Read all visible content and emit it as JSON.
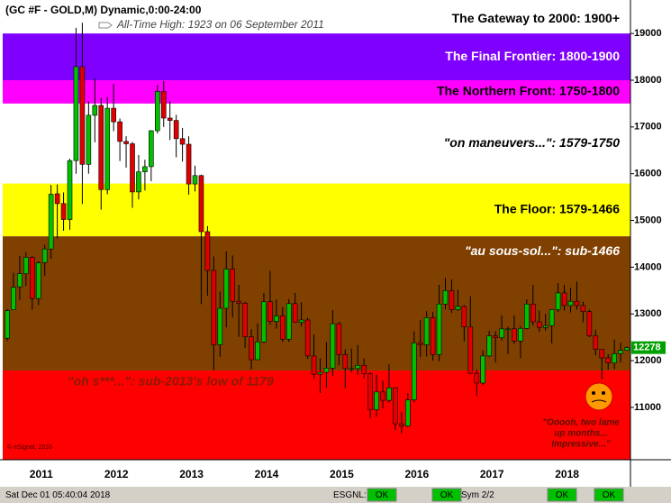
{
  "chart_data": {
    "type": "candlestick",
    "title": "(GC #F - GOLD,M) Dynamic,0:00-24:00",
    "annotations": {
      "all_time_high": "All-Time High:  1923 on 06 September 2011",
      "copyright": "© eSignal, 2016",
      "caption": [
        "\"Ooooh, two lame",
        "up months...",
        "Impressive...\""
      ]
    },
    "bands": [
      {
        "label": "The Gateway to 2000:  1900+",
        "low": 19000,
        "color": "#ffffff",
        "text_color": "#000000"
      },
      {
        "label": "The Final Frontier:  1800-1900",
        "low": 18000,
        "color": "#8000ff",
        "text_color": "#ffffff"
      },
      {
        "label": "The Northern Front:  1750-1800",
        "low": 17500,
        "color": "#ff00ff",
        "text_color": "#000000"
      },
      {
        "label": "\"on maneuvers...\":  1579-1750",
        "low": 15790,
        "color": "#ffffff",
        "text_color": "#000000"
      },
      {
        "label": "The Floor:  1579-1466",
        "low": 14660,
        "color": "#ffff00",
        "text_color": "#000000"
      },
      {
        "label": "\"au sous-sol...\":  sub-1466",
        "low": 11790,
        "color": "#804000",
        "text_color": "#ffffff"
      },
      {
        "label": "\"oh s***...\":  sub-2013's low of 1179",
        "color": "#ff0000",
        "text_color": "#8b1a00"
      }
    ],
    "categories": [
      null,
      null,
      null,
      null,
      "2011",
      null,
      null,
      null,
      null,
      null,
      null,
      null,
      null,
      null,
      null,
      null,
      "2012",
      null,
      null,
      null,
      null,
      null,
      null,
      null,
      null,
      null,
      null,
      null,
      "2013",
      null,
      null,
      null,
      null,
      null,
      null,
      null,
      null,
      null,
      null,
      null,
      "2014",
      null,
      null,
      null,
      null,
      null,
      null,
      null,
      null,
      null,
      null,
      null,
      "2015",
      null,
      null,
      null,
      null,
      null,
      null,
      null,
      null,
      null,
      null,
      null,
      "2016",
      null,
      null,
      null,
      null,
      null,
      null,
      null,
      null,
      null,
      null,
      null,
      "2017",
      null,
      null,
      null,
      null,
      null,
      null,
      null,
      null,
      null,
      null,
      null,
      "2018",
      null,
      null,
      null,
      null,
      null,
      null,
      null,
      null,
      null,
      null,
      null
    ],
    "open": [
      12480,
      13090,
      13580,
      13860,
      14210,
      13330,
      14100,
      14390,
      15570,
      15360,
      15020,
      16280,
      18290,
      16200,
      17250,
      17460,
      15660,
      17400,
      17110,
      16690,
      16640,
      15610,
      16040,
      16150,
      16920,
      17760,
      17190,
      17140,
      16750,
      16630,
      15780,
      15960,
      14760,
      13930,
      12340,
      13120,
      13960,
      13270,
      13230,
      12510,
      12020,
      12400,
      13260,
      12840,
      12960,
      12460,
      13220,
      12820,
      12870,
      12100,
      11710,
      11750,
      11840,
      12790,
      12130,
      11830,
      11830,
      11900,
      11720,
      10950,
      11330,
      11150,
      11420,
      10650,
      10600,
      11160,
      12380,
      12340,
      12920,
      12130,
      13210,
      13500,
      13090,
      13160,
      12720,
      11730,
      11520,
      12100,
      12530,
      12490,
      12680,
      12680,
      12420,
      12690,
      13210,
      12830,
      12710,
      12750,
      13090,
      13450,
      13180,
      13270,
      13180,
      13050,
      12530,
      12240,
      12060,
      11950,
      12150,
      12220
    ],
    "high": [
      13100,
      13880,
      14240,
      14320,
      14240,
      14130,
      14480,
      15760,
      15770,
      15600,
      16320,
      19120,
      19230,
      17550,
      18040,
      17620,
      17640,
      17920,
      17180,
      16800,
      16680,
      16400,
      16300,
      16930,
      17900,
      17980,
      17550,
      17260,
      16980,
      16800,
      16170,
      15980,
      14880,
      14230,
      13480,
      14340,
      14250,
      13620,
      13260,
      12670,
      12800,
      13450,
      13920,
      13310,
      13150,
      13320,
      13450,
      13250,
      12920,
      12560,
      12050,
      12400,
      13080,
      12830,
      12240,
      12260,
      12330,
      12050,
      11750,
      11700,
      11570,
      11920,
      11430,
      10900,
      11300,
      12630,
      12870,
      13060,
      13040,
      13620,
      13770,
      13740,
      13520,
      13190,
      13380,
      11810,
      12220,
      12640,
      12630,
      12970,
      12730,
      12970,
      12740,
      13310,
      13620,
      13070,
      13000,
      13100,
      13660,
      13620,
      13560,
      13690,
      13260,
      13090,
      12660,
      12240,
      12140,
      12450,
      12390,
      12300
    ],
    "low": [
      12420,
      13100,
      13300,
      13600,
      13090,
      13190,
      13810,
      14180,
      14620,
      14780,
      14800,
      16000,
      15350,
      16000,
      16670,
      15230,
      15560,
      16910,
      16270,
      16130,
      15270,
      15450,
      15640,
      15840,
      16860,
      17000,
      16720,
      16350,
      16260,
      15550,
      15620,
      13210,
      13390,
      11790,
      12080,
      12710,
      12920,
      12510,
      12270,
      11810,
      12020,
      12380,
      12770,
      12680,
      12400,
      12400,
      12820,
      12730,
      12040,
      11610,
      11310,
      11420,
      11670,
      11900,
      11420,
      11750,
      11700,
      11620,
      10770,
      10800,
      10980,
      11100,
      10520,
      10450,
      10580,
      11110,
      12080,
      12090,
      12000,
      11990,
      13100,
      13020,
      13060,
      12410,
      11710,
      11240,
      11470,
      12080,
      11960,
      12430,
      12140,
      12360,
      12050,
      12670,
      12750,
      12620,
      12640,
      12370,
      13040,
      13070,
      13030,
      13090,
      12820,
      12500,
      12110,
      11600,
      11800,
      11820,
      11960,
      12210
    ],
    "close": [
      13070,
      13570,
      13860,
      14210,
      13330,
      14090,
      14390,
      15560,
      15360,
      15020,
      16280,
      18290,
      16200,
      17250,
      17460,
      15660,
      17400,
      17110,
      16690,
      16640,
      15610,
      16040,
      16150,
      16920,
      17760,
      17190,
      17140,
      16750,
      16630,
      15780,
      15960,
      14760,
      13930,
      12340,
      13120,
      13960,
      13270,
      13230,
      12510,
      12020,
      12400,
      13260,
      12840,
      12960,
      12460,
      13220,
      12820,
      12870,
      12100,
      11710,
      11750,
      11840,
      12790,
      12130,
      11830,
      11830,
      11900,
      11720,
      10950,
      11330,
      11150,
      11420,
      10650,
      10600,
      11160,
      12380,
      12340,
      12920,
      12130,
      13210,
      13500,
      13090,
      13160,
      12720,
      11730,
      11520,
      12100,
      12530,
      12490,
      12680,
      12680,
      12420,
      12690,
      13210,
      12830,
      12710,
      12750,
      13090,
      13450,
      13180,
      13270,
      13180,
      13050,
      12530,
      12240,
      12060,
      11950,
      12150,
      12220,
      12278
    ],
    "up_color": "#00c000",
    "down_color": "#e00000",
    "ylim": [
      9880,
      19620
    ],
    "yticks": [
      11000,
      12000,
      13000,
      14000,
      15000,
      16000,
      17000,
      18000,
      19000
    ]
  },
  "status_bar": {
    "datetime": "Sat Dec 01 05:40:04 2018",
    "feed": "ESGNL:",
    "feed_status": "OK",
    "status2": "OK",
    "sym": "Sym 2/2",
    "status3": "OK",
    "status4": "OK"
  }
}
